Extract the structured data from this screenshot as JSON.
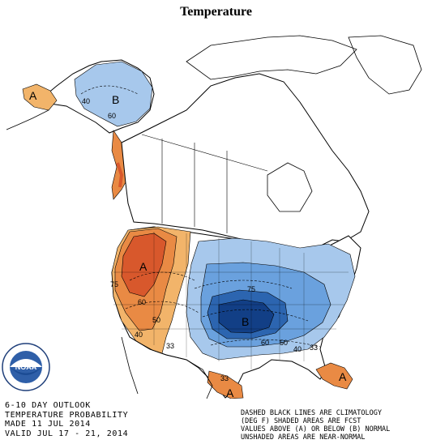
{
  "title": "Temperature",
  "outlook": {
    "line1": "6-10 DAY OUTLOOK",
    "line2": "TEMPERATURE PROBABILITY",
    "line3": "MADE  11 JUL 2014",
    "line4": "VALID  JUL 17 - 21, 2014"
  },
  "legend": {
    "line1": "DASHED BLACK LINES ARE CLIMATOLOGY",
    "line2": "(DEG F) SHADED AREAS ARE FCST",
    "line3": "VALUES ABOVE (A) OR BELOW (B) NORMAL",
    "line4": "UNSHADED AREAS ARE NEAR-NORMAL"
  },
  "logo": {
    "text": "NOAA",
    "ring_text": "NATIONAL OCEANIC AND ATMOSPHERIC ADMINISTRATION"
  },
  "map_labels": {
    "alaska_a": "A",
    "alaska_b": "B",
    "alaska_40": "40",
    "alaska_60": "60",
    "west_a": "A",
    "west_75": "75",
    "west_60": "60",
    "west_50": "50",
    "west_40": "40",
    "west_33": "33",
    "east_b": "B",
    "east_75": "75",
    "east_60": "60",
    "east_50": "50",
    "east_40": "40",
    "east_33": "33",
    "tx_a": "A",
    "tx_33": "33",
    "fl_a": "A"
  },
  "colors": {
    "above_light": "#f2b46a",
    "above_mid": "#e98a44",
    "above_dark": "#d8582c",
    "below_light": "#a7c8ec",
    "below_mid": "#6aa1de",
    "below_dark": "#2c65b0",
    "below_darkest": "#123f86"
  }
}
